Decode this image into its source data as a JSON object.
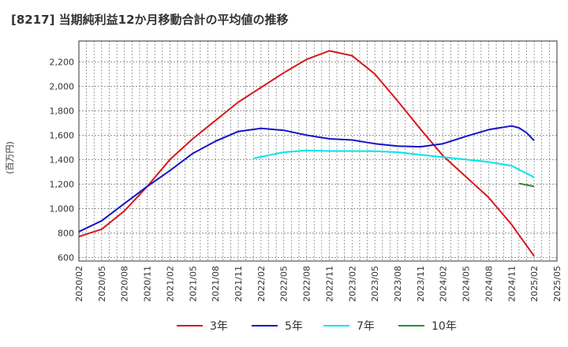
{
  "chart_data": {
    "type": "line",
    "title": "[8217]  当期純利益12か月移動合計の平均値の推移",
    "ylabel": "(百万円)",
    "xlabel": "",
    "ylim": [
      570,
      2370
    ],
    "yticks": [
      600,
      800,
      1000,
      1200,
      1400,
      1600,
      1800,
      2000,
      2200
    ],
    "ytick_labels": [
      "600",
      "800",
      "1,000",
      "1,200",
      "1,400",
      "1,600",
      "1,800",
      "2,000",
      "2,200"
    ],
    "xticks": [
      "2020/02",
      "2020/05",
      "2020/08",
      "2020/11",
      "2021/02",
      "2021/05",
      "2021/08",
      "2021/11",
      "2022/02",
      "2022/05",
      "2022/08",
      "2022/11",
      "2023/02",
      "2023/05",
      "2023/08",
      "2023/11",
      "2024/02",
      "2024/05",
      "2024/08",
      "2024/11",
      "2025/02",
      "2025/05"
    ],
    "grid": true,
    "legend_position": "bottom",
    "series": [
      {
        "name": "3年",
        "color": "#d7191c",
        "x": [
          "2020/02",
          "2020/05",
          "2020/08",
          "2020/11",
          "2021/02",
          "2021/05",
          "2021/08",
          "2021/11",
          "2022/02",
          "2022/05",
          "2022/08",
          "2022/11",
          "2023/02",
          "2023/05",
          "2023/08",
          "2023/11",
          "2024/02",
          "2024/05",
          "2024/08",
          "2024/11",
          "2025/02"
        ],
        "y": [
          770,
          830,
          980,
          1180,
          1400,
          1570,
          1720,
          1870,
          1990,
          2110,
          2220,
          2290,
          2250,
          2100,
          1880,
          1650,
          1430,
          1260,
          1090,
          870,
          610
        ]
      },
      {
        "name": "5年",
        "color": "#1414c8",
        "x": [
          "2020/02",
          "2020/05",
          "2020/08",
          "2020/11",
          "2021/02",
          "2021/05",
          "2021/08",
          "2021/11",
          "2022/02",
          "2022/05",
          "2022/08",
          "2022/11",
          "2023/02",
          "2023/05",
          "2023/08",
          "2023/11",
          "2024/02",
          "2024/05",
          "2024/08",
          "2024/11",
          "2024/12",
          "2025/01",
          "2025/02"
        ],
        "y": [
          810,
          900,
          1040,
          1180,
          1310,
          1450,
          1550,
          1630,
          1655,
          1640,
          1600,
          1570,
          1560,
          1530,
          1510,
          1505,
          1530,
          1590,
          1645,
          1675,
          1660,
          1620,
          1555
        ]
      },
      {
        "name": "7年",
        "color": "#00e5ee",
        "x": [
          "2022/01",
          "2022/05",
          "2022/08",
          "2022/11",
          "2023/02",
          "2023/05",
          "2023/08",
          "2023/11",
          "2024/02",
          "2024/05",
          "2024/08",
          "2024/11",
          "2025/02"
        ],
        "y": [
          1410,
          1460,
          1475,
          1470,
          1470,
          1468,
          1460,
          1440,
          1420,
          1400,
          1380,
          1350,
          1255
        ]
      },
      {
        "name": "10年",
        "color": "#2e8b2e",
        "x": [
          "2024/12",
          "2025/02"
        ],
        "y": [
          1205,
          1180
        ]
      }
    ]
  }
}
